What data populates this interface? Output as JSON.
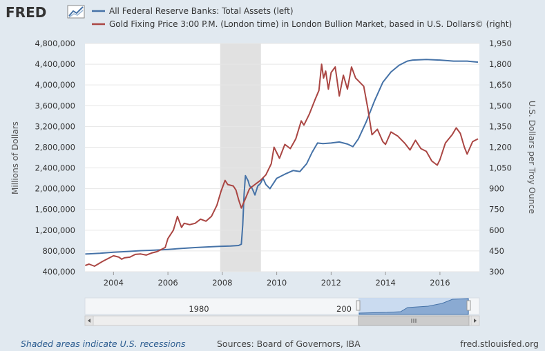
{
  "header": {
    "logo": "FRED"
  },
  "legend": [
    {
      "label": "All Federal Reserve Banks: Total Assets (left)",
      "color": "#4572a7"
    },
    {
      "label": "Gold Fixing Price 3:00 P.M. (London time) in London Bullion Market, based in U.S. Dollars© (right)",
      "color": "#aa4643"
    }
  ],
  "navigator": {
    "labels": [
      "1980",
      "200"
    ]
  },
  "footer": {
    "recessions_note": "Shaded areas indicate U.S. recessions",
    "sources": "Sources: Board of Governors, IBA",
    "site": "fred.stlouisfed.org"
  },
  "chart_data": {
    "type": "line",
    "title": "",
    "xlabel": "",
    "ylabel_left": "Millions of Dollars",
    "ylabel_right": "U.S. Dollars per Troy Ounce",
    "xlim": [
      2002.95,
      2017.45
    ],
    "ylim_left": [
      400000,
      4800000
    ],
    "ylim_right": [
      300,
      1950
    ],
    "x_ticks": [
      "2004",
      "2006",
      "2008",
      "2010",
      "2012",
      "2014",
      "2016"
    ],
    "y_ticks_left": [
      "4,800,000",
      "4,400,000",
      "4,000,000",
      "3,600,000",
      "3,200,000",
      "2,800,000",
      "2,400,000",
      "2,000,000",
      "1,600,000",
      "1,200,000",
      "800,000",
      "400,000"
    ],
    "y_ticks_right": [
      "1,950",
      "1,800",
      "1,650",
      "1,500",
      "1,350",
      "1,200",
      "1,050",
      "900",
      "750",
      "600",
      "450",
      "300"
    ],
    "grid": true,
    "legend_position": "top",
    "recession_shading": [
      [
        2007.92,
        2009.42
      ]
    ],
    "series": [
      {
        "name": "All Federal Reserve Banks: Total Assets (left)",
        "axis": "left",
        "color": "#4572a7",
        "x": [
          2002.96,
          2003.5,
          2004.0,
          2004.5,
          2005.0,
          2005.5,
          2006.0,
          2006.5,
          2007.0,
          2007.5,
          2007.9,
          2008.3,
          2008.6,
          2008.7,
          2008.75,
          2008.8,
          2008.85,
          2008.9,
          2008.95,
          2009.0,
          2009.1,
          2009.2,
          2009.3,
          2009.4,
          2009.5,
          2009.6,
          2009.75,
          2010.0,
          2010.3,
          2010.6,
          2010.85,
          2011.1,
          2011.3,
          2011.5,
          2011.7,
          2012.0,
          2012.3,
          2012.6,
          2012.8,
          2013.0,
          2013.3,
          2013.6,
          2013.9,
          2014.2,
          2014.5,
          2014.8,
          2015.0,
          2015.5,
          2016.0,
          2016.5,
          2017.0,
          2017.4
        ],
        "y": [
          740000,
          755000,
          775000,
          790000,
          805000,
          815000,
          830000,
          848000,
          865000,
          878000,
          888000,
          895000,
          905000,
          930000,
          1300000,
          1900000,
          2250000,
          2200000,
          2150000,
          2060000,
          2000000,
          1880000,
          2050000,
          2100000,
          2200000,
          2080000,
          2000000,
          2200000,
          2280000,
          2350000,
          2330000,
          2480000,
          2700000,
          2880000,
          2870000,
          2880000,
          2900000,
          2860000,
          2810000,
          2960000,
          3300000,
          3700000,
          4050000,
          4250000,
          4380000,
          4460000,
          4480000,
          4490000,
          4480000,
          4460000,
          4460000,
          4440000
        ]
      },
      {
        "name": "Gold Fixing Price 3:00 P.M. (London time) in London Bullion Market, based in U.S. Dollars© (right)",
        "axis": "right",
        "color": "#aa4643",
        "x": [
          2002.96,
          2003.1,
          2003.3,
          2003.6,
          2003.9,
          2004.0,
          2004.2,
          2004.3,
          2004.4,
          2004.6,
          2004.8,
          2005.0,
          2005.2,
          2005.4,
          2005.6,
          2005.9,
          2006.0,
          2006.2,
          2006.35,
          2006.5,
          2006.6,
          2006.8,
          2007.0,
          2007.2,
          2007.4,
          2007.6,
          2007.8,
          2007.95,
          2008.1,
          2008.2,
          2008.4,
          2008.5,
          2008.6,
          2008.7,
          2008.83,
          2009.0,
          2009.2,
          2009.4,
          2009.6,
          2009.8,
          2009.9,
          2010.1,
          2010.3,
          2010.5,
          2010.7,
          2010.9,
          2011.0,
          2011.2,
          2011.4,
          2011.55,
          2011.65,
          2011.72,
          2011.8,
          2011.9,
          2012.0,
          2012.15,
          2012.3,
          2012.45,
          2012.6,
          2012.75,
          2012.9,
          2013.0,
          2013.2,
          2013.35,
          2013.5,
          2013.7,
          2013.9,
          2014.0,
          2014.2,
          2014.45,
          2014.7,
          2014.9,
          2015.1,
          2015.3,
          2015.5,
          2015.7,
          2015.9,
          2016.0,
          2016.2,
          2016.45,
          2016.6,
          2016.75,
          2016.9,
          2017.0,
          2017.2,
          2017.4
        ],
        "y": [
          345,
          355,
          340,
          375,
          405,
          415,
          405,
          390,
          400,
          405,
          425,
          428,
          420,
          435,
          445,
          475,
          540,
          600,
          700,
          620,
          650,
          640,
          650,
          680,
          665,
          700,
          780,
          880,
          960,
          930,
          920,
          890,
          820,
          760,
          820,
          900,
          930,
          960,
          1000,
          1080,
          1200,
          1120,
          1220,
          1190,
          1260,
          1390,
          1360,
          1440,
          1540,
          1610,
          1800,
          1700,
          1750,
          1620,
          1740,
          1780,
          1570,
          1720,
          1620,
          1780,
          1700,
          1680,
          1640,
          1480,
          1290,
          1330,
          1240,
          1220,
          1310,
          1280,
          1230,
          1180,
          1250,
          1190,
          1170,
          1100,
          1070,
          1110,
          1230,
          1290,
          1340,
          1300,
          1200,
          1150,
          1240,
          1260
        ]
      }
    ]
  }
}
